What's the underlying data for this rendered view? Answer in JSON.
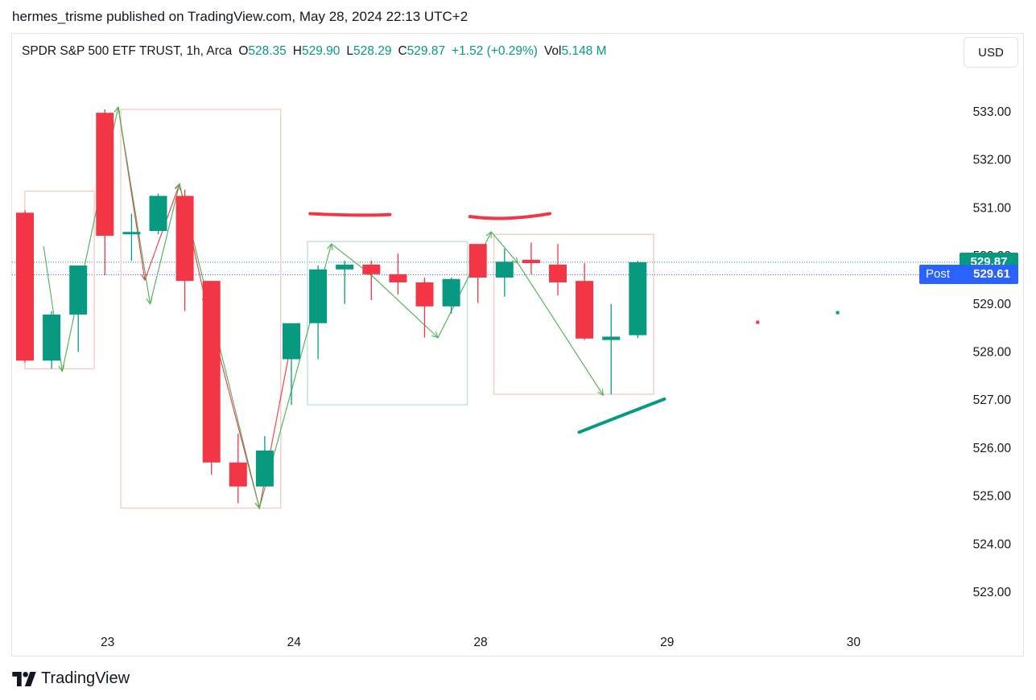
{
  "header": {
    "published": "hermes_trisme published on TradingView.com, May 28, 2024 22:13 UTC+2"
  },
  "legend": {
    "symbol": "SPDR S&P 500 ETF TRUST, 1h, Arca",
    "open_label": "O",
    "open": "528.35",
    "high_label": "H",
    "high": "529.90",
    "low_label": "L",
    "low": "528.29",
    "close_label": "C",
    "close": "529.87",
    "change": "+1.52 (+0.29%)",
    "vol_label": "Vol",
    "volume": "5.148 M"
  },
  "currency_button": "USD",
  "price_tags": {
    "last": "529.87",
    "post_label": "Post",
    "post": "529.61"
  },
  "footer": {
    "brand": "TradingView"
  },
  "colors": {
    "up": "#089981",
    "down": "#f23645",
    "post_tag": "#2962ff",
    "axis_text": "#131722",
    "grid_border": "#e0e3eb"
  },
  "chart_data": {
    "type": "candlestick",
    "symbol": "SPY",
    "interval": "1h",
    "y_ticks": [
      "523.00",
      "524.00",
      "525.00",
      "526.00",
      "527.00",
      "528.00",
      "529.00",
      "530.00",
      "531.00",
      "532.00",
      "533.00"
    ],
    "ylim": [
      522.3,
      534.0
    ],
    "x_labels": [
      {
        "label": "23",
        "bar": 3.1
      },
      {
        "label": "24",
        "bar": 10.1
      },
      {
        "label": "28",
        "bar": 17.1
      },
      {
        "label": "29",
        "bar": 24.1
      },
      {
        "label": "30",
        "bar": 31.1
      }
    ],
    "candles": [
      {
        "o": 530.9,
        "h": 530.95,
        "l": 527.78,
        "c": 527.82
      },
      {
        "o": 527.82,
        "h": 528.85,
        "l": 527.65,
        "c": 528.78
      },
      {
        "o": 528.78,
        "h": 529.8,
        "l": 528.0,
        "c": 529.8
      },
      {
        "o": 532.98,
        "h": 533.05,
        "l": 529.6,
        "c": 530.42
      },
      {
        "o": 530.45,
        "h": 530.88,
        "l": 529.9,
        "c": 530.5
      },
      {
        "o": 530.52,
        "h": 531.3,
        "l": 530.45,
        "c": 531.25
      },
      {
        "o": 531.25,
        "h": 531.38,
        "l": 528.85,
        "c": 529.48
      },
      {
        "o": 529.48,
        "h": 529.48,
        "l": 525.45,
        "c": 525.7
      },
      {
        "o": 525.7,
        "h": 526.3,
        "l": 524.85,
        "c": 525.2
      },
      {
        "o": 525.2,
        "h": 526.25,
        "l": 525.2,
        "c": 525.95
      },
      {
        "o": 527.85,
        "h": 528.5,
        "l": 526.9,
        "c": 528.6
      },
      {
        "o": 528.6,
        "h": 529.8,
        "l": 527.85,
        "c": 529.72
      },
      {
        "o": 529.72,
        "h": 529.9,
        "l": 529.0,
        "c": 529.82
      },
      {
        "o": 529.82,
        "h": 529.9,
        "l": 529.08,
        "c": 529.62
      },
      {
        "o": 529.62,
        "h": 530.05,
        "l": 529.2,
        "c": 529.45
      },
      {
        "o": 529.45,
        "h": 529.55,
        "l": 528.3,
        "c": 528.95
      },
      {
        "o": 528.95,
        "h": 529.55,
        "l": 528.8,
        "c": 529.52
      },
      {
        "o": 530.25,
        "h": 530.25,
        "l": 529.02,
        "c": 529.55
      },
      {
        "o": 529.55,
        "h": 530.15,
        "l": 529.15,
        "c": 529.88
      },
      {
        "o": 529.92,
        "h": 530.28,
        "l": 529.62,
        "c": 529.85
      },
      {
        "o": 529.82,
        "h": 530.25,
        "l": 529.18,
        "c": 529.45
      },
      {
        "o": 529.48,
        "h": 529.85,
        "l": 528.25,
        "c": 528.28
      },
      {
        "o": 528.25,
        "h": 529.0,
        "l": 527.12,
        "c": 528.32
      },
      {
        "o": 528.35,
        "h": 529.9,
        "l": 528.29,
        "c": 529.87
      }
    ],
    "extended_hours_dots": [
      {
        "bar": 27.5,
        "price": 528.62,
        "direction": "down"
      },
      {
        "bar": 30.5,
        "price": 528.82,
        "direction": "up"
      }
    ],
    "last_price": 529.87,
    "post_market_price": 529.61,
    "annotations": {
      "zigzag_up": [
        [
          0.7,
          530.2
        ],
        [
          1.4,
          527.6
        ],
        [
          3.5,
          533.1
        ],
        [
          4.7,
          529.0
        ],
        [
          5.8,
          531.5
        ],
        [
          8.8,
          524.75
        ],
        [
          11.5,
          530.25
        ],
        [
          13.0,
          529.6
        ],
        [
          15.5,
          528.3
        ],
        [
          17.5,
          530.5
        ],
        [
          18.5,
          529.85
        ],
        [
          21.7,
          527.1
        ]
      ],
      "zigzag_down": [
        [
          3.5,
          533.1
        ],
        [
          4.5,
          529.5
        ],
        [
          5.8,
          531.5
        ],
        [
          6.8,
          529.0
        ],
        [
          8.8,
          524.75
        ],
        [
          10.1,
          528.5
        ]
      ],
      "boxes": [
        {
          "from": 0.0,
          "to": 2.6,
          "top": 531.35,
          "bottom": 527.65,
          "color": "#f5c9c4"
        },
        {
          "from": 3.6,
          "to": 9.6,
          "top": 533.05,
          "bottom": 524.75,
          "color": "#f5c9c4"
        },
        {
          "from": 10.6,
          "to": 16.6,
          "top": 530.3,
          "bottom": 526.9,
          "color": "#b9e3d9"
        },
        {
          "from": 17.6,
          "to": 23.6,
          "top": 530.45,
          "bottom": 527.12,
          "color": "#f5c9c4"
        }
      ],
      "resistance_strokes": [
        {
          "points": [
            [
              10.7,
              530.88
            ],
            [
              12.6,
              530.83
            ],
            [
              13.7,
              530.86
            ]
          ],
          "color": "#f23645"
        },
        {
          "points": [
            [
              16.7,
              530.82
            ],
            [
              18.0,
              530.72
            ],
            [
              19.7,
              530.88
            ]
          ],
          "color": "#f23645"
        }
      ],
      "support_stroke": {
        "points": [
          [
            20.8,
            526.33
          ],
          [
            22.4,
            526.68
          ],
          [
            24.0,
            527.02
          ]
        ],
        "color": "#089981"
      }
    }
  }
}
